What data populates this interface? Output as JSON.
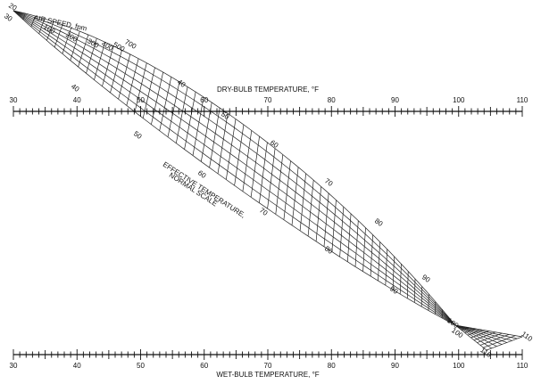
{
  "dry_bulb_scale": {
    "label": "DRY-BULB TEMPERATURE, °F",
    "range": [
      30,
      110
    ],
    "ticks": [
      30,
      40,
      50,
      60,
      70,
      80,
      90,
      100,
      110
    ]
  },
  "wet_bulb_scale": {
    "label": "WET-BULB TEMPERATURE, °F",
    "range": [
      30,
      110
    ],
    "ticks": [
      30,
      40,
      50,
      60,
      70,
      80,
      90,
      100,
      110
    ]
  },
  "air_speed": {
    "label": "AIR SPEED, fpm",
    "values": [
      20,
      100,
      200,
      300,
      400,
      500,
      700
    ]
  },
  "effective_temperature": {
    "label": [
      "EFFECTIVE TEMPERATURE,",
      "NORMAL SCALE"
    ],
    "upper_values": [
      40,
      50,
      60,
      70,
      80,
      90,
      100
    ],
    "lower_values": [
      30,
      40,
      50,
      60,
      70,
      80,
      90,
      100,
      110,
      110
    ]
  }
}
